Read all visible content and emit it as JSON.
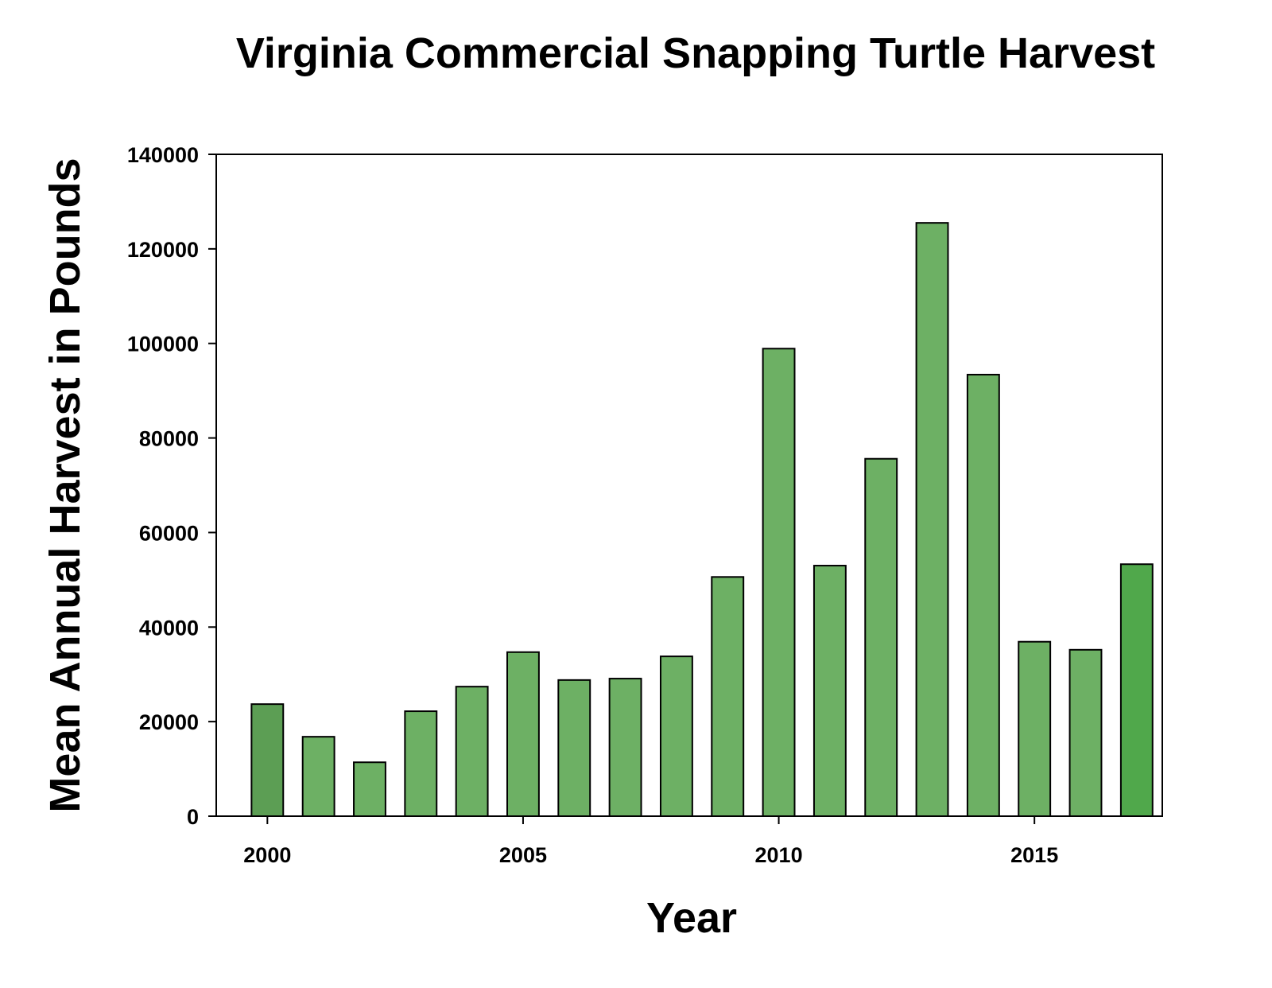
{
  "chart_data": {
    "type": "bar",
    "title": "Virginia Commercial Snapping Turtle Harvest",
    "x_label": "Year",
    "y_label": "Mean Annual Harvest in Pounds",
    "x": [
      2000,
      2001,
      2002,
      2003,
      2004,
      2005,
      2006,
      2007,
      2008,
      2009,
      2010,
      2011,
      2012,
      2013,
      2014,
      2015,
      2016,
      2017
    ],
    "values": [
      23700,
      16800,
      11400,
      22200,
      27400,
      34700,
      28800,
      29100,
      33800,
      50600,
      98900,
      53000,
      75600,
      125500,
      93400,
      36900,
      35200,
      53300
    ],
    "colors": [
      "#5c9e54",
      "#6db064",
      "#6db064",
      "#6db064",
      "#6db064",
      "#6db064",
      "#6db064",
      "#6db064",
      "#6db064",
      "#6db064",
      "#6db064",
      "#6db064",
      "#6db064",
      "#6db064",
      "#6db064",
      "#6db064",
      "#6db064",
      "#50a84b"
    ],
    "xlim": [
      1999,
      2017.5
    ],
    "xticks": [
      2000,
      2005,
      2010,
      2015
    ],
    "ylim": [
      0,
      140000
    ],
    "yticks": [
      0,
      20000,
      40000,
      60000,
      80000,
      100000,
      120000,
      140000
    ],
    "grid": false
  }
}
